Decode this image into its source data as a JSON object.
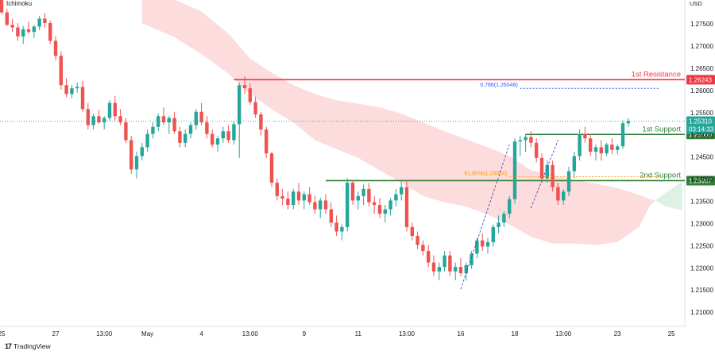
{
  "indicator_label": "Ichimoku",
  "currency": "USD",
  "brand": {
    "logo": "17",
    "name": "TradingView"
  },
  "colors": {
    "bull": "#26a69a",
    "bear": "#ef5350",
    "cloud_bear": "#fcdcdc",
    "cloud_bull": "#dff1e6",
    "resistance": "#f23645",
    "support": "#2e7d32",
    "fib_blue": "#2962ff",
    "fib_orange": "#ff9800",
    "last_price": "#26a69a"
  },
  "chart_data": {
    "type": "candlestick",
    "y_axis": {
      "ticks": [
        1.215,
        1.22,
        1.225,
        1.23,
        1.235,
        1.24,
        1.245,
        1.25,
        1.255,
        1.26,
        1.265,
        1.27,
        1.275,
        1.21
      ],
      "tick_labels": [
        "1.21500",
        "1.22000",
        "1.22500",
        "1.23000",
        "1.23500",
        "1.24000",
        "1.24500",
        "1.25000",
        "1.25500",
        "1.26000",
        "1.26500",
        "1.27000",
        "1.27500",
        "1.21000"
      ],
      "range": [
        1.2068,
        1.2804
      ]
    },
    "x_axis": {
      "labels": [
        "25",
        "27",
        "13:00",
        "May",
        "4",
        "13:00",
        "9",
        "11",
        "13:00",
        "16",
        "18",
        "13:00",
        "23",
        "25"
      ],
      "label_bar_index": [
        0,
        10,
        19,
        27,
        37,
        46,
        56,
        66,
        75,
        85,
        95,
        104,
        114,
        124
      ],
      "bar_count": 126
    },
    "levels": [
      {
        "name": "1st Resistance",
        "value": 1.26243,
        "tag": "1.26243",
        "kind": "resistance",
        "start_bar": 43
      },
      {
        "name": "1st Support",
        "value": 1.25009,
        "tag": "1.25009",
        "kind": "support",
        "start_bar": 97
      },
      {
        "name": "2nd Support",
        "value": 1.23967,
        "tag": "1.23967",
        "kind": "support",
        "start_bar": 60
      }
    ],
    "fib": [
      {
        "label": "0.786(1.26048)",
        "value": 1.26048,
        "color": "blue",
        "start_bar": 96
      },
      {
        "label": "61.80%(1.24054)",
        "value": 1.24054,
        "color": "orange",
        "start_bar": 94
      }
    ],
    "last_price": {
      "value": 1.2531,
      "tag": "1.25310",
      "countdown": "03:14:33"
    },
    "candles": [
      [
        1.2808,
        1.2812,
        1.2772,
        1.2776
      ],
      [
        1.2776,
        1.2784,
        1.2745,
        1.2748
      ],
      [
        1.2748,
        1.2762,
        1.2732,
        1.2742
      ],
      [
        1.2742,
        1.2752,
        1.2712,
        1.2722
      ],
      [
        1.2722,
        1.2745,
        1.2705,
        1.2738
      ],
      [
        1.2738,
        1.2755,
        1.2728,
        1.2732
      ],
      [
        1.2732,
        1.2748,
        1.2718,
        1.2744
      ],
      [
        1.2744,
        1.2768,
        1.2736,
        1.2762
      ],
      [
        1.2762,
        1.2775,
        1.2742,
        1.2752
      ],
      [
        1.2752,
        1.2758,
        1.2705,
        1.2712
      ],
      [
        1.2712,
        1.2722,
        1.2668,
        1.2678
      ],
      [
        1.2678,
        1.2688,
        1.2602,
        1.2612
      ],
      [
        1.2612,
        1.2628,
        1.2585,
        1.2592
      ],
      [
        1.2592,
        1.2612,
        1.2582,
        1.2605
      ],
      [
        1.2605,
        1.2618,
        1.2595,
        1.2608
      ],
      [
        1.2608,
        1.2622,
        1.2552,
        1.2558
      ],
      [
        1.2558,
        1.2572,
        1.2512,
        1.2522
      ],
      [
        1.2522,
        1.2548,
        1.2512,
        1.2542
      ],
      [
        1.2542,
        1.2556,
        1.2525,
        1.2528
      ],
      [
        1.2528,
        1.2542,
        1.2512,
        1.2538
      ],
      [
        1.2538,
        1.2578,
        1.2532,
        1.2572
      ],
      [
        1.2572,
        1.2588,
        1.2532,
        1.2542
      ],
      [
        1.2542,
        1.2558,
        1.2522,
        1.2528
      ],
      [
        1.2528,
        1.2538,
        1.2482,
        1.2488
      ],
      [
        1.2488,
        1.2498,
        1.2412,
        1.2422
      ],
      [
        1.2422,
        1.2462,
        1.2402,
        1.2452
      ],
      [
        1.2452,
        1.2482,
        1.2442,
        1.2472
      ],
      [
        1.2472,
        1.2512,
        1.2462,
        1.2502
      ],
      [
        1.2502,
        1.2528,
        1.2492,
        1.2518
      ],
      [
        1.2518,
        1.2548,
        1.2508,
        1.2542
      ],
      [
        1.2542,
        1.2562,
        1.2522,
        1.2528
      ],
      [
        1.2528,
        1.2542,
        1.2502,
        1.2538
      ],
      [
        1.2538,
        1.2552,
        1.2502,
        1.2508
      ],
      [
        1.2508,
        1.2518,
        1.2472,
        1.2482
      ],
      [
        1.2482,
        1.2512,
        1.2472,
        1.2502
      ],
      [
        1.2502,
        1.2528,
        1.2492,
        1.2522
      ],
      [
        1.2522,
        1.2558,
        1.2512,
        1.2552
      ],
      [
        1.2552,
        1.2572,
        1.2522,
        1.2528
      ],
      [
        1.2528,
        1.2542,
        1.2492,
        1.2502
      ],
      [
        1.2502,
        1.2512,
        1.2472,
        1.2478
      ],
      [
        1.2478,
        1.2498,
        1.2462,
        1.2492
      ],
      [
        1.2492,
        1.2518,
        1.2482,
        1.2508
      ],
      [
        1.2508,
        1.2522,
        1.2482,
        1.2488
      ],
      [
        1.2488,
        1.2532,
        1.2478,
        1.2524
      ],
      [
        1.2524,
        1.2618,
        1.2448,
        1.2612
      ],
      [
        1.2612,
        1.2632,
        1.2592,
        1.2605
      ],
      [
        1.2605,
        1.2616,
        1.2568,
        1.2574
      ],
      [
        1.2574,
        1.2586,
        1.2538,
        1.2546
      ],
      [
        1.2546,
        1.2552,
        1.2498,
        1.2512
      ],
      [
        1.2512,
        1.2518,
        1.2448,
        1.2458
      ],
      [
        1.2458,
        1.2462,
        1.2382,
        1.2392
      ],
      [
        1.2392,
        1.2402,
        1.2352,
        1.2362
      ],
      [
        1.2362,
        1.2378,
        1.2342,
        1.2356
      ],
      [
        1.2356,
        1.2372,
        1.2332,
        1.2342
      ],
      [
        1.2342,
        1.2378,
        1.2332,
        1.2372
      ],
      [
        1.2372,
        1.2392,
        1.2342,
        1.2352
      ],
      [
        1.2352,
        1.2372,
        1.2332,
        1.2366
      ],
      [
        1.2366,
        1.2382,
        1.2342,
        1.2348
      ],
      [
        1.2348,
        1.2362,
        1.2322,
        1.2332
      ],
      [
        1.2332,
        1.2358,
        1.2312,
        1.2352
      ],
      [
        1.2352,
        1.2366,
        1.2322,
        1.2332
      ],
      [
        1.2332,
        1.2348,
        1.2292,
        1.2302
      ],
      [
        1.2302,
        1.2318,
        1.2272,
        1.2282
      ],
      [
        1.2282,
        1.2298,
        1.2262,
        1.2292
      ],
      [
        1.2292,
        1.2402,
        1.2282,
        1.2392
      ],
      [
        1.2392,
        1.2398,
        1.2342,
        1.2352
      ],
      [
        1.2352,
        1.2372,
        1.2332,
        1.2362
      ],
      [
        1.2362,
        1.2388,
        1.2342,
        1.2378
      ],
      [
        1.2378,
        1.2392,
        1.2338,
        1.2348
      ],
      [
        1.2348,
        1.2362,
        1.2322,
        1.2342
      ],
      [
        1.2342,
        1.2358,
        1.2312,
        1.2322
      ],
      [
        1.2322,
        1.2342,
        1.2302,
        1.2332
      ],
      [
        1.2332,
        1.2358,
        1.2318,
        1.2352
      ],
      [
        1.2352,
        1.2378,
        1.2338,
        1.2366
      ],
      [
        1.2366,
        1.2398,
        1.2352,
        1.2382
      ],
      [
        1.2382,
        1.2398,
        1.2282,
        1.2292
      ],
      [
        1.2292,
        1.2302,
        1.2262,
        1.2272
      ],
      [
        1.2272,
        1.2282,
        1.2242,
        1.2252
      ],
      [
        1.2252,
        1.2262,
        1.2228,
        1.2238
      ],
      [
        1.2238,
        1.2252,
        1.2202,
        1.2212
      ],
      [
        1.2212,
        1.2228,
        1.2182,
        1.2192
      ],
      [
        1.2192,
        1.2212,
        1.2172,
        1.2202
      ],
      [
        1.2202,
        1.2238,
        1.2192,
        1.2228
      ],
      [
        1.2228,
        1.2238,
        1.2182,
        1.2192
      ],
      [
        1.2192,
        1.2212,
        1.2172,
        1.2202
      ],
      [
        1.2202,
        1.2222,
        1.2182,
        1.2188
      ],
      [
        1.2188,
        1.2212,
        1.2172,
        1.2206
      ],
      [
        1.2206,
        1.2238,
        1.2198,
        1.2232
      ],
      [
        1.2232,
        1.2268,
        1.2222,
        1.2262
      ],
      [
        1.2262,
        1.2278,
        1.2238,
        1.2248
      ],
      [
        1.2248,
        1.2268,
        1.2232,
        1.2258
      ],
      [
        1.2258,
        1.2298,
        1.2248,
        1.2292
      ],
      [
        1.2292,
        1.2318,
        1.2278,
        1.2302
      ],
      [
        1.2302,
        1.2328,
        1.2292,
        1.2322
      ],
      [
        1.2322,
        1.2362,
        1.2312,
        1.2355
      ],
      [
        1.2355,
        1.2492,
        1.2345,
        1.2485
      ],
      [
        1.2485,
        1.2498,
        1.2452,
        1.2488
      ],
      [
        1.2488,
        1.2502,
        1.2462,
        1.2495
      ],
      [
        1.2495,
        1.2508,
        1.2472,
        1.2482
      ],
      [
        1.2482,
        1.2492,
        1.2438,
        1.2448
      ],
      [
        1.2448,
        1.2458,
        1.2392,
        1.2402
      ],
      [
        1.2402,
        1.2442,
        1.2392,
        1.2432
      ],
      [
        1.2432,
        1.2442,
        1.2372,
        1.2382
      ],
      [
        1.2382,
        1.2392,
        1.2342,
        1.2352
      ],
      [
        1.2352,
        1.2378,
        1.2342,
        1.2372
      ],
      [
        1.2372,
        1.2428,
        1.2362,
        1.2418
      ],
      [
        1.2418,
        1.2462,
        1.2402,
        1.2452
      ],
      [
        1.2452,
        1.2512,
        1.2442,
        1.2502
      ],
      [
        1.2502,
        1.2518,
        1.2482,
        1.2492
      ],
      [
        1.2492,
        1.2502,
        1.2452,
        1.2462
      ],
      [
        1.2462,
        1.2478,
        1.2442,
        1.2472
      ],
      [
        1.2472,
        1.2488,
        1.2442,
        1.2458
      ],
      [
        1.2458,
        1.2482,
        1.2452,
        1.2478
      ],
      [
        1.2478,
        1.2492,
        1.2456,
        1.2466
      ],
      [
        1.2466,
        1.2478,
        1.2456,
        1.2474
      ],
      [
        1.2474,
        1.2532,
        1.2468,
        1.2526
      ],
      [
        1.2526,
        1.2538,
        1.2518,
        1.2531
      ]
    ],
    "kumo_bear": [
      [
        26,
        1.2815,
        1.2752
      ],
      [
        32,
        1.2805,
        1.272
      ],
      [
        37,
        1.2778,
        1.2682
      ],
      [
        42,
        1.2728,
        1.2638
      ],
      [
        46,
        1.2672,
        1.2592
      ],
      [
        50,
        1.264,
        1.2558
      ],
      [
        54,
        1.2612,
        1.2528
      ],
      [
        58,
        1.2592,
        1.2488
      ],
      [
        62,
        1.2578,
        1.2468
      ],
      [
        66,
        1.257,
        1.2448
      ],
      [
        70,
        1.2562,
        1.242
      ],
      [
        74,
        1.2548,
        1.2392
      ],
      [
        78,
        1.2528,
        1.2362
      ],
      [
        82,
        1.2508,
        1.2348
      ],
      [
        86,
        1.249,
        1.2338
      ],
      [
        90,
        1.2472,
        1.232
      ],
      [
        94,
        1.2452,
        1.2298
      ],
      [
        98,
        1.242,
        1.227
      ],
      [
        102,
        1.241,
        1.2255
      ],
      [
        106,
        1.2398,
        1.2255
      ],
      [
        110,
        1.239,
        1.2252
      ],
      [
        114,
        1.238,
        1.2258
      ],
      [
        118,
        1.2365,
        1.2292
      ],
      [
        120,
        1.2355,
        1.234
      ],
      [
        121,
        1.2352,
        1.2352
      ]
    ],
    "kumo_bull": [
      [
        121,
        1.2352,
        1.2352
      ],
      [
        123,
        1.237,
        1.2338
      ],
      [
        126,
        1.2395,
        1.233
      ]
    ],
    "zigzag": [
      {
        "from": [
          85,
          1.2152
        ],
        "to": [
          94,
          1.2478
        ]
      },
      {
        "from": [
          98,
          1.2335
        ],
        "to": [
          103,
          1.2488
        ]
      }
    ]
  }
}
